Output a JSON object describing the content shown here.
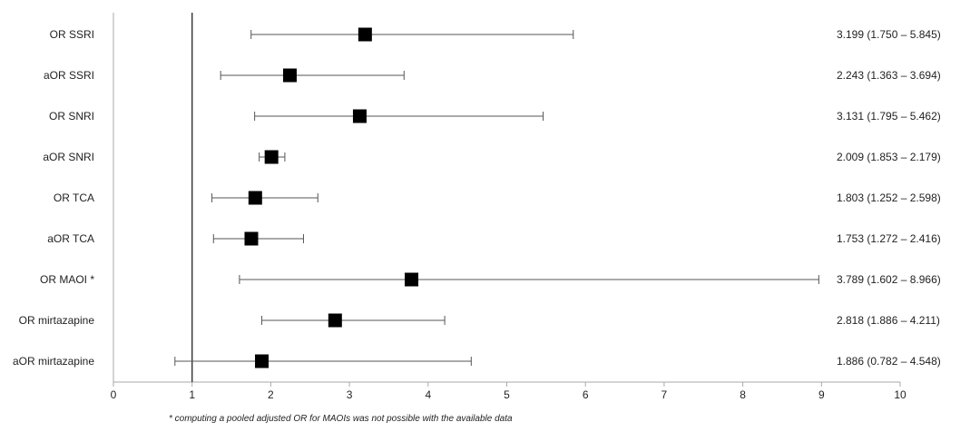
{
  "chart_data": {
    "type": "forest",
    "rows": [
      {
        "label": "OR SSRI",
        "estimate": 3.199,
        "lower": 1.75,
        "upper": 5.845,
        "value_text": "3.199 (1.750 – 5.845)"
      },
      {
        "label": "aOR SSRI",
        "estimate": 2.243,
        "lower": 1.363,
        "upper": 3.694,
        "value_text": "2.243 (1.363 – 3.694)"
      },
      {
        "label": "OR SNRI",
        "estimate": 3.131,
        "lower": 1.795,
        "upper": 5.462,
        "value_text": "3.131 (1.795 – 5.462)"
      },
      {
        "label": "aOR SNRI",
        "estimate": 2.009,
        "lower": 1.853,
        "upper": 2.179,
        "value_text": "2.009 (1.853 – 2.179)"
      },
      {
        "label": "OR TCA",
        "estimate": 1.803,
        "lower": 1.252,
        "upper": 2.598,
        "value_text": "1.803 (1.252 – 2.598)"
      },
      {
        "label": "aOR TCA",
        "estimate": 1.753,
        "lower": 1.272,
        "upper": 2.416,
        "value_text": "1.753 (1.272 – 2.416)"
      },
      {
        "label": "OR MAOI *",
        "estimate": 3.789,
        "lower": 1.602,
        "upper": 8.966,
        "value_text": "3.789 (1.602 – 8.966)"
      },
      {
        "label": "OR mirtazapine",
        "estimate": 2.818,
        "lower": 1.886,
        "upper": 4.211,
        "value_text": "2.818 (1.886 – 4.211)"
      },
      {
        "label": "aOR mirtazapine",
        "estimate": 1.886,
        "lower": 0.782,
        "upper": 4.548,
        "value_text": "1.886 (0.782 – 4.548)"
      }
    ],
    "xlim": [
      0,
      10
    ],
    "xticks": [
      "0",
      "1",
      "2",
      "3",
      "4",
      "5",
      "6",
      "7",
      "8",
      "9",
      "10"
    ],
    "reference_line": 1,
    "grid": false,
    "colors": {
      "marker": "#000000",
      "whisker": "#555555",
      "axis": "#aaaaaa",
      "reference": "#333333"
    }
  },
  "footnote": "* computing a pooled adjusted OR for MAOIs was not possible with the available data"
}
